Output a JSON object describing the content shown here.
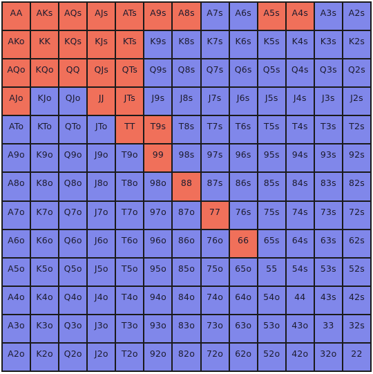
{
  "colors": {
    "raise": "#f0705a",
    "fold": "#8087ea",
    "grid_line": "#1a1a1a",
    "text": "#1b1b2e"
  },
  "rows": [
    {
      "cells": [
        {
          "label": "AA",
          "action": "raise"
        },
        {
          "label": "AKs",
          "action": "raise"
        },
        {
          "label": "AQs",
          "action": "raise"
        },
        {
          "label": "AJs",
          "action": "raise"
        },
        {
          "label": "ATs",
          "action": "raise"
        },
        {
          "label": "A9s",
          "action": "raise"
        },
        {
          "label": "A8s",
          "action": "raise"
        },
        {
          "label": "A7s",
          "action": "fold"
        },
        {
          "label": "A6s",
          "action": "fold"
        },
        {
          "label": "A5s",
          "action": "raise"
        },
        {
          "label": "A4s",
          "action": "raise"
        },
        {
          "label": "A3s",
          "action": "fold"
        },
        {
          "label": "A2s",
          "action": "fold"
        }
      ]
    },
    {
      "cells": [
        {
          "label": "AKo",
          "action": "raise"
        },
        {
          "label": "KK",
          "action": "raise"
        },
        {
          "label": "KQs",
          "action": "raise"
        },
        {
          "label": "KJs",
          "action": "raise"
        },
        {
          "label": "KTs",
          "action": "raise"
        },
        {
          "label": "K9s",
          "action": "fold"
        },
        {
          "label": "K8s",
          "action": "fold"
        },
        {
          "label": "K7s",
          "action": "fold"
        },
        {
          "label": "K6s",
          "action": "fold"
        },
        {
          "label": "K5s",
          "action": "fold"
        },
        {
          "label": "K4s",
          "action": "fold"
        },
        {
          "label": "K3s",
          "action": "fold"
        },
        {
          "label": "K2s",
          "action": "fold"
        }
      ]
    },
    {
      "cells": [
        {
          "label": "AQo",
          "action": "raise"
        },
        {
          "label": "KQo",
          "action": "raise"
        },
        {
          "label": "QQ",
          "action": "raise"
        },
        {
          "label": "QJs",
          "action": "raise"
        },
        {
          "label": "QTs",
          "action": "raise"
        },
        {
          "label": "Q9s",
          "action": "fold"
        },
        {
          "label": "Q8s",
          "action": "fold"
        },
        {
          "label": "Q7s",
          "action": "fold"
        },
        {
          "label": "Q6s",
          "action": "fold"
        },
        {
          "label": "Q5s",
          "action": "fold"
        },
        {
          "label": "Q4s",
          "action": "fold"
        },
        {
          "label": "Q3s",
          "action": "fold"
        },
        {
          "label": "Q2s",
          "action": "fold"
        }
      ]
    },
    {
      "cells": [
        {
          "label": "AJo",
          "action": "raise"
        },
        {
          "label": "KJo",
          "action": "fold"
        },
        {
          "label": "QJo",
          "action": "fold"
        },
        {
          "label": "JJ",
          "action": "raise"
        },
        {
          "label": "JTs",
          "action": "raise"
        },
        {
          "label": "J9s",
          "action": "fold"
        },
        {
          "label": "J8s",
          "action": "fold"
        },
        {
          "label": "J7s",
          "action": "fold"
        },
        {
          "label": "J6s",
          "action": "fold"
        },
        {
          "label": "J5s",
          "action": "fold"
        },
        {
          "label": "J4s",
          "action": "fold"
        },
        {
          "label": "J3s",
          "action": "fold"
        },
        {
          "label": "J2s",
          "action": "fold"
        }
      ]
    },
    {
      "cells": [
        {
          "label": "ATo",
          "action": "fold"
        },
        {
          "label": "KTo",
          "action": "fold"
        },
        {
          "label": "QTo",
          "action": "fold"
        },
        {
          "label": "JTo",
          "action": "fold"
        },
        {
          "label": "TT",
          "action": "raise"
        },
        {
          "label": "T9s",
          "action": "raise"
        },
        {
          "label": "T8s",
          "action": "fold"
        },
        {
          "label": "T7s",
          "action": "fold"
        },
        {
          "label": "T6s",
          "action": "fold"
        },
        {
          "label": "T5s",
          "action": "fold"
        },
        {
          "label": "T4s",
          "action": "fold"
        },
        {
          "label": "T3s",
          "action": "fold"
        },
        {
          "label": "T2s",
          "action": "fold"
        }
      ]
    },
    {
      "cells": [
        {
          "label": "A9o",
          "action": "fold"
        },
        {
          "label": "K9o",
          "action": "fold"
        },
        {
          "label": "Q9o",
          "action": "fold"
        },
        {
          "label": "J9o",
          "action": "fold"
        },
        {
          "label": "T9o",
          "action": "fold"
        },
        {
          "label": "99",
          "action": "raise"
        },
        {
          "label": "98s",
          "action": "fold"
        },
        {
          "label": "97s",
          "action": "fold"
        },
        {
          "label": "96s",
          "action": "fold"
        },
        {
          "label": "95s",
          "action": "fold"
        },
        {
          "label": "94s",
          "action": "fold"
        },
        {
          "label": "93s",
          "action": "fold"
        },
        {
          "label": "92s",
          "action": "fold"
        }
      ]
    },
    {
      "cells": [
        {
          "label": "A8o",
          "action": "fold"
        },
        {
          "label": "K8o",
          "action": "fold"
        },
        {
          "label": "Q8o",
          "action": "fold"
        },
        {
          "label": "J8o",
          "action": "fold"
        },
        {
          "label": "T8o",
          "action": "fold"
        },
        {
          "label": "98o",
          "action": "fold"
        },
        {
          "label": "88",
          "action": "raise"
        },
        {
          "label": "87s",
          "action": "fold"
        },
        {
          "label": "86s",
          "action": "fold"
        },
        {
          "label": "85s",
          "action": "fold"
        },
        {
          "label": "84s",
          "action": "fold"
        },
        {
          "label": "83s",
          "action": "fold"
        },
        {
          "label": "82s",
          "action": "fold"
        }
      ]
    },
    {
      "cells": [
        {
          "label": "A7o",
          "action": "fold"
        },
        {
          "label": "K7o",
          "action": "fold"
        },
        {
          "label": "Q7o",
          "action": "fold"
        },
        {
          "label": "J7o",
          "action": "fold"
        },
        {
          "label": "T7o",
          "action": "fold"
        },
        {
          "label": "97o",
          "action": "fold"
        },
        {
          "label": "87o",
          "action": "fold"
        },
        {
          "label": "77",
          "action": "raise"
        },
        {
          "label": "76s",
          "action": "fold"
        },
        {
          "label": "75s",
          "action": "fold"
        },
        {
          "label": "74s",
          "action": "fold"
        },
        {
          "label": "73s",
          "action": "fold"
        },
        {
          "label": "72s",
          "action": "fold"
        }
      ]
    },
    {
      "cells": [
        {
          "label": "A6o",
          "action": "fold"
        },
        {
          "label": "K6o",
          "action": "fold"
        },
        {
          "label": "Q6o",
          "action": "fold"
        },
        {
          "label": "J6o",
          "action": "fold"
        },
        {
          "label": "T6o",
          "action": "fold"
        },
        {
          "label": "96o",
          "action": "fold"
        },
        {
          "label": "86o",
          "action": "fold"
        },
        {
          "label": "76o",
          "action": "fold"
        },
        {
          "label": "66",
          "action": "raise"
        },
        {
          "label": "65s",
          "action": "fold"
        },
        {
          "label": "64s",
          "action": "fold"
        },
        {
          "label": "63s",
          "action": "fold"
        },
        {
          "label": "62s",
          "action": "fold"
        }
      ]
    },
    {
      "cells": [
        {
          "label": "A5o",
          "action": "fold"
        },
        {
          "label": "K5o",
          "action": "fold"
        },
        {
          "label": "Q5o",
          "action": "fold"
        },
        {
          "label": "J5o",
          "action": "fold"
        },
        {
          "label": "T5o",
          "action": "fold"
        },
        {
          "label": "95o",
          "action": "fold"
        },
        {
          "label": "85o",
          "action": "fold"
        },
        {
          "label": "75o",
          "action": "fold"
        },
        {
          "label": "65o",
          "action": "fold"
        },
        {
          "label": "55",
          "action": "fold"
        },
        {
          "label": "54s",
          "action": "fold"
        },
        {
          "label": "53s",
          "action": "fold"
        },
        {
          "label": "52s",
          "action": "fold"
        }
      ]
    },
    {
      "cells": [
        {
          "label": "A4o",
          "action": "fold"
        },
        {
          "label": "K4o",
          "action": "fold"
        },
        {
          "label": "Q4o",
          "action": "fold"
        },
        {
          "label": "J4o",
          "action": "fold"
        },
        {
          "label": "T4o",
          "action": "fold"
        },
        {
          "label": "94o",
          "action": "fold"
        },
        {
          "label": "84o",
          "action": "fold"
        },
        {
          "label": "74o",
          "action": "fold"
        },
        {
          "label": "64o",
          "action": "fold"
        },
        {
          "label": "54o",
          "action": "fold"
        },
        {
          "label": "44",
          "action": "fold"
        },
        {
          "label": "43s",
          "action": "fold"
        },
        {
          "label": "42s",
          "action": "fold"
        }
      ]
    },
    {
      "cells": [
        {
          "label": "A3o",
          "action": "fold"
        },
        {
          "label": "K3o",
          "action": "fold"
        },
        {
          "label": "Q3o",
          "action": "fold"
        },
        {
          "label": "J3o",
          "action": "fold"
        },
        {
          "label": "T3o",
          "action": "fold"
        },
        {
          "label": "93o",
          "action": "fold"
        },
        {
          "label": "83o",
          "action": "fold"
        },
        {
          "label": "73o",
          "action": "fold"
        },
        {
          "label": "63o",
          "action": "fold"
        },
        {
          "label": "53o",
          "action": "fold"
        },
        {
          "label": "43o",
          "action": "fold"
        },
        {
          "label": "33",
          "action": "fold"
        },
        {
          "label": "32s",
          "action": "fold"
        }
      ]
    },
    {
      "cells": [
        {
          "label": "A2o",
          "action": "fold"
        },
        {
          "label": "K2o",
          "action": "fold"
        },
        {
          "label": "Q2o",
          "action": "fold"
        },
        {
          "label": "J2o",
          "action": "fold"
        },
        {
          "label": "T2o",
          "action": "fold"
        },
        {
          "label": "92o",
          "action": "fold"
        },
        {
          "label": "82o",
          "action": "fold"
        },
        {
          "label": "72o",
          "action": "fold"
        },
        {
          "label": "62o",
          "action": "fold"
        },
        {
          "label": "52o",
          "action": "fold"
        },
        {
          "label": "42o",
          "action": "fold"
        },
        {
          "label": "32o",
          "action": "fold"
        },
        {
          "label": "22",
          "action": "fold"
        }
      ]
    }
  ]
}
